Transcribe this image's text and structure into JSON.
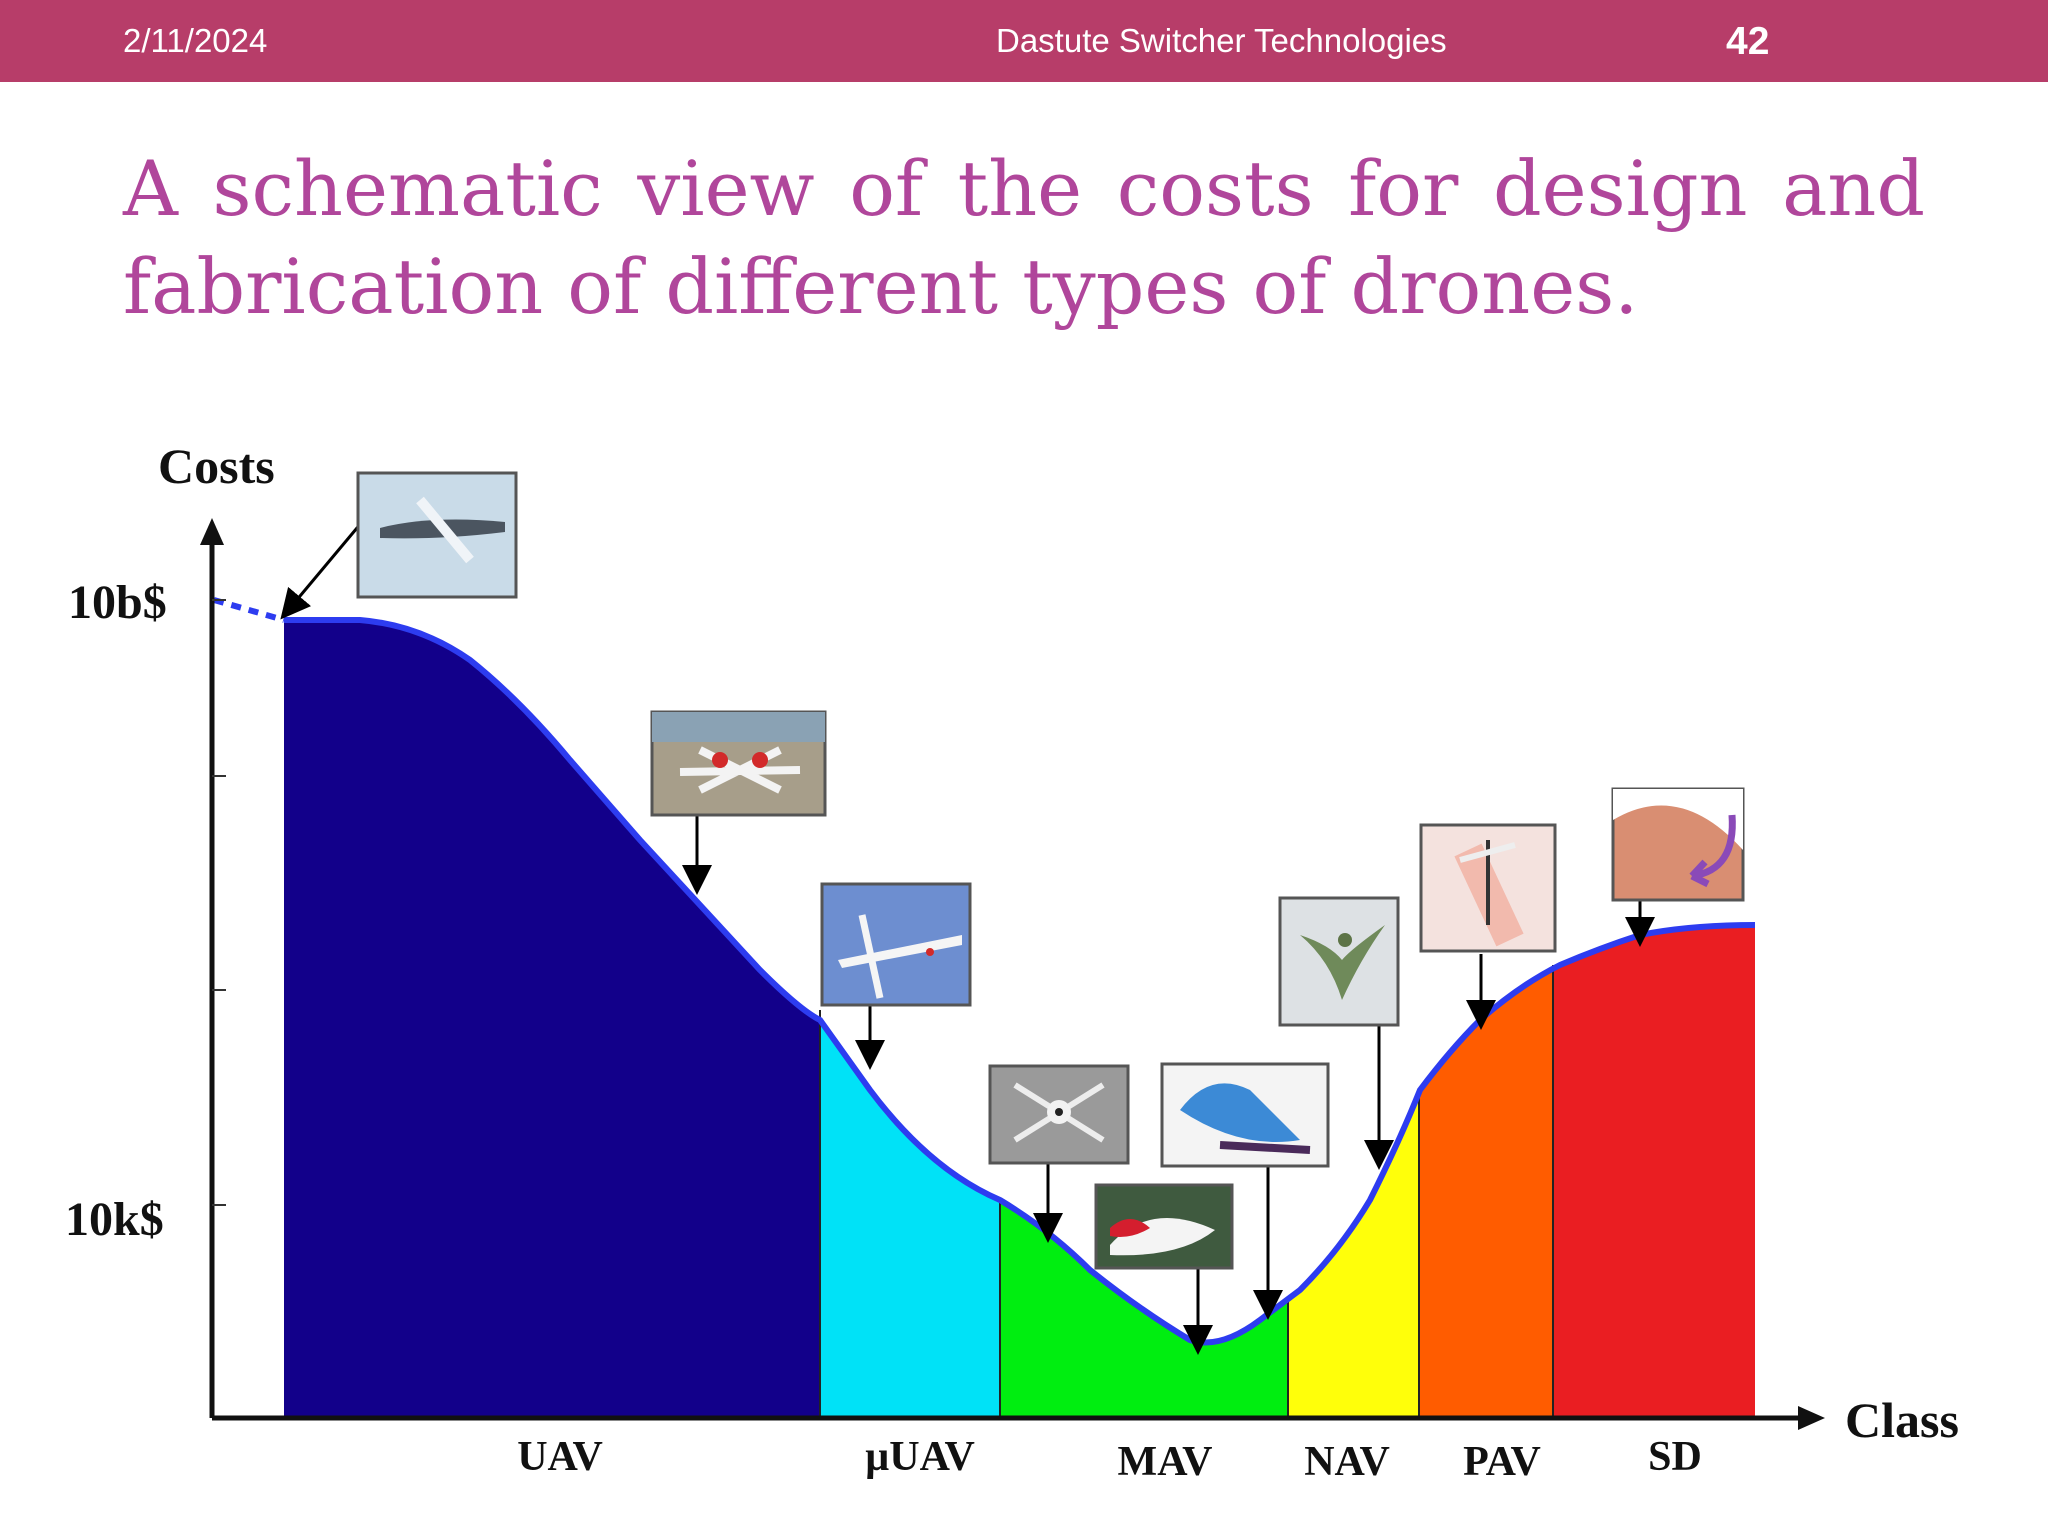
{
  "header": {
    "date": "2/11/2024",
    "company": "Dastute Switcher Technologies",
    "page_number": "42"
  },
  "title": "A schematic view of the costs for design and fabrication of different types of drones.",
  "chart_data": {
    "type": "area",
    "ylabel": "Costs",
    "xlabel": "Class",
    "y_ticks": [
      "10b$",
      "10k$"
    ],
    "categories": [
      "UAV",
      "µUAV",
      "MAV",
      "NAV",
      "PAV",
      "SD"
    ],
    "region_colors": [
      "#12008a",
      "#00e2f7",
      "#00ee10",
      "#ffff0a",
      "#ff5c00",
      "#ea1e22"
    ],
    "curve_color": "#2d3cf0"
  }
}
